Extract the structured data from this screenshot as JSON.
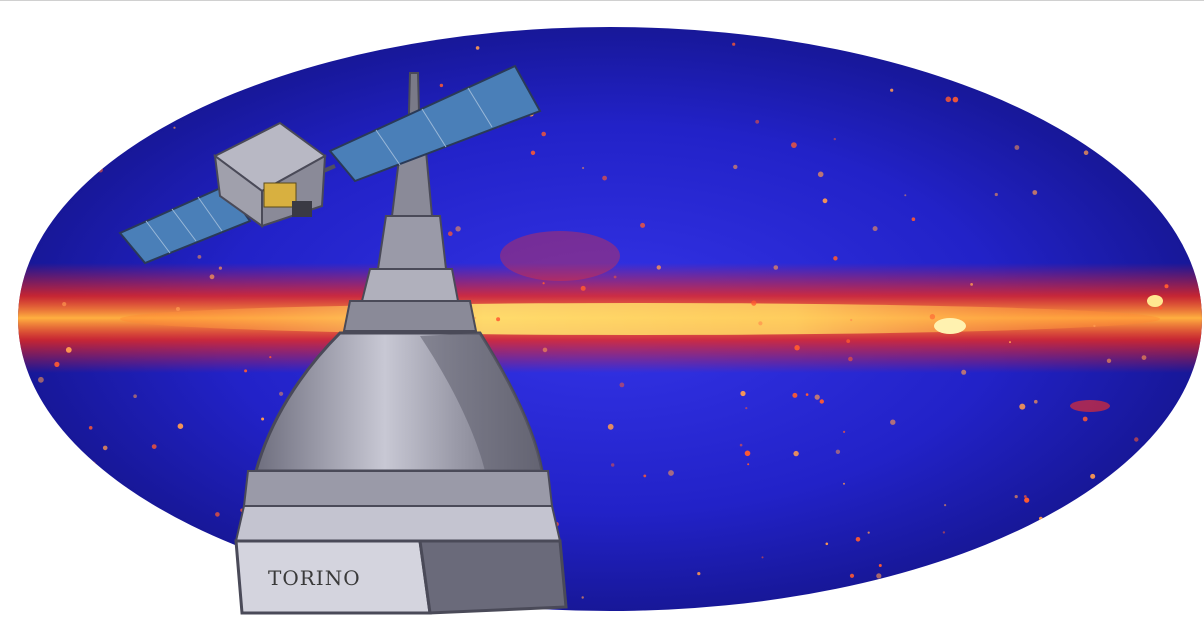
{
  "monument": {
    "base_label": "TORINO"
  },
  "colors": {
    "sky_deep": "#1a1aa8",
    "sky_mid": "#2a2ad8",
    "galactic_plane_core": "#ffe080",
    "galactic_plane_glow": "#ff2a1a",
    "dome_light": "#c8c8d4",
    "dome_dark": "#707080",
    "panel_blue": "#4a7fb8"
  },
  "icons": {
    "sky_map": "all-sky-gamma-map",
    "satellite": "satellite-icon",
    "monument": "mole-antonelliana-tower"
  }
}
